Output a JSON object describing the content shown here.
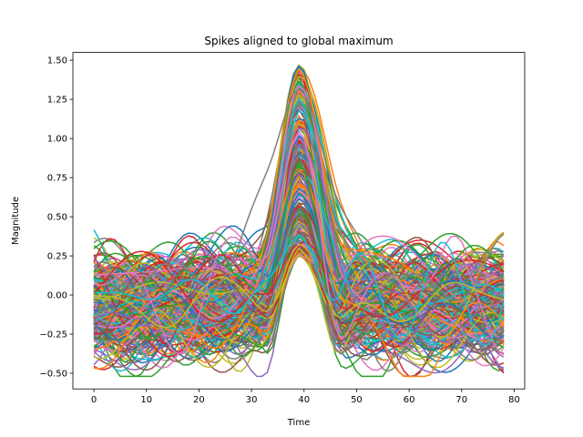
{
  "chart_data": {
    "type": "line",
    "title": "Spikes aligned to global maximum",
    "xlabel": "Time",
    "ylabel": "Magnitude",
    "xlim": [
      -4,
      82
    ],
    "ylim": [
      -0.6,
      1.55
    ],
    "xticks": [
      0,
      10,
      20,
      30,
      40,
      50,
      60,
      70,
      80
    ],
    "xtick_labels": [
      "0",
      "10",
      "20",
      "30",
      "40",
      "50",
      "60",
      "70",
      "80"
    ],
    "yticks": [
      -0.5,
      -0.25,
      0.0,
      0.25,
      0.5,
      0.75,
      1.0,
      1.25,
      1.5
    ],
    "ytick_labels": [
      "−0.50",
      "−0.25",
      "0.00",
      "0.25",
      "0.50",
      "0.75",
      "1.00",
      "1.25",
      "1.50"
    ],
    "grid": false,
    "legend": "none",
    "x_range": [
      0,
      78
    ],
    "peak_time": 39,
    "n_traces": 300,
    "peak_range": [
      0.25,
      1.47
    ],
    "baseline_range": [
      -0.35,
      0.45
    ],
    "series_colors": [
      "#1f77b4",
      "#ff7f0e",
      "#2ca02c",
      "#d62728",
      "#9467bd",
      "#8c564b",
      "#e377c2",
      "#7f7f7f",
      "#bcbd22",
      "#17becf"
    ]
  }
}
